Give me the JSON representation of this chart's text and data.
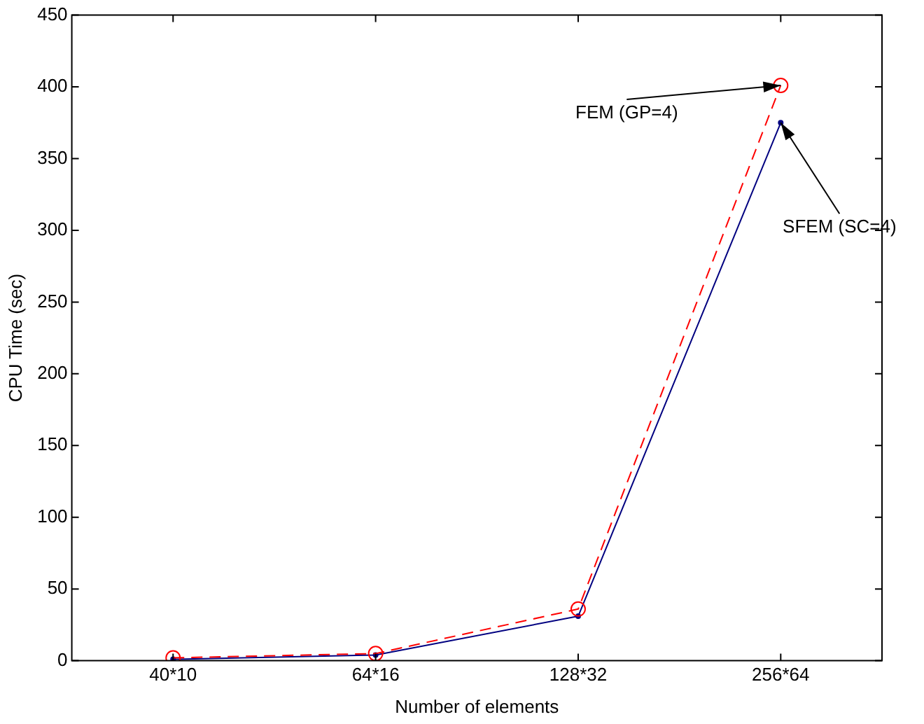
{
  "chart_data": {
    "type": "line",
    "xlabel": "Number of elements",
    "ylabel": "CPU Time (sec)",
    "categories": [
      "40*10",
      "64*16",
      "128*32",
      "256*64"
    ],
    "ylim": [
      0,
      450
    ],
    "yticks": [
      0,
      50,
      100,
      150,
      200,
      250,
      300,
      350,
      400,
      450
    ],
    "series": [
      {
        "color": "#ff0000",
        "values": [
          2,
          5,
          36,
          401
        ],
        "marker": "circle",
        "line_style": "dashed"
      },
      {
        "color": "#000080",
        "values": [
          1,
          4,
          31,
          375
        ],
        "marker": "circle",
        "line_style": "solid"
      }
    ],
    "annotations": [
      {
        "text": "FEM (GP=4)",
        "x": "256*64",
        "y": 401
      },
      {
        "text": "SFEM (SC=4)",
        "x": "256*64",
        "y": 375
      }
    ],
    "grid": false,
    "legend": false
  }
}
